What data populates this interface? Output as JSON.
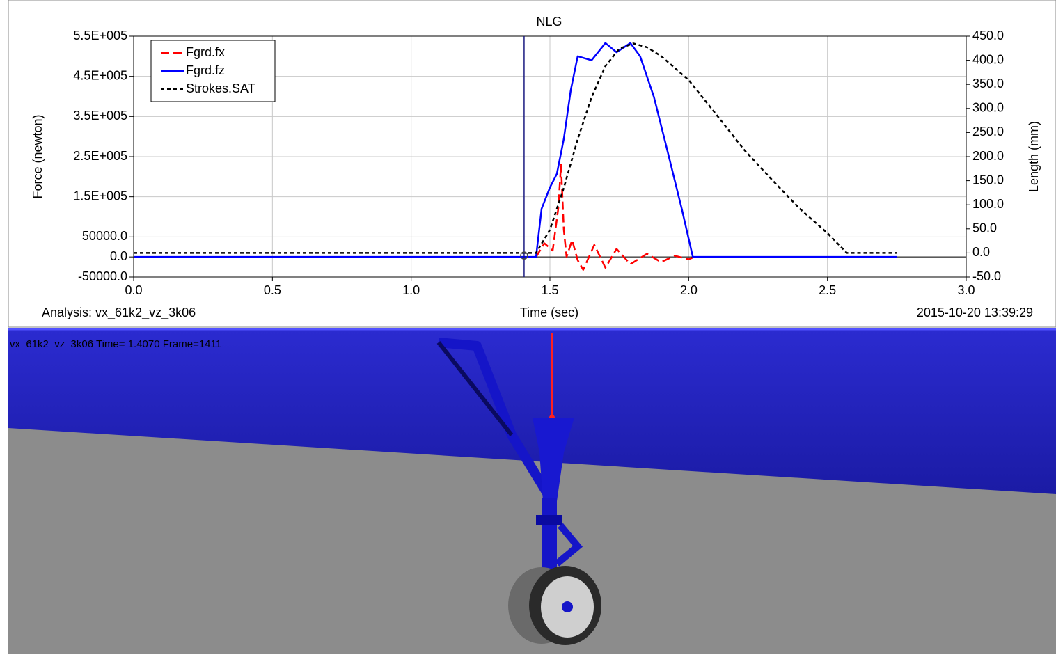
{
  "chart_data": {
    "type": "line",
    "title": "NLG",
    "xlabel": "Time (sec)",
    "ylabel": "Force (newton)",
    "y2label": "Length (mm)",
    "analysis": "Analysis:  vx_61k2_vz_3k06",
    "timestamp": "2015-10-20 13:39:29",
    "xlim": [
      0,
      3
    ],
    "xticks": [
      {
        "value": 0,
        "label": "0.0"
      },
      {
        "value": 0.5,
        "label": "0.5"
      },
      {
        "value": 1,
        "label": "1.0"
      },
      {
        "value": 1.5,
        "label": "1.5"
      },
      {
        "value": 2,
        "label": "2.0"
      },
      {
        "value": 2.5,
        "label": "2.5"
      },
      {
        "value": 3,
        "label": "3.0"
      }
    ],
    "ylim": [
      -50000,
      550000
    ],
    "yticks": [
      {
        "value": 550000,
        "label": "5.5E+005"
      },
      {
        "value": 450000,
        "label": "4.5E+005"
      },
      {
        "value": 350000,
        "label": "3.5E+005"
      },
      {
        "value": 250000,
        "label": "2.5E+005"
      },
      {
        "value": 150000,
        "label": "1.5E+005"
      },
      {
        "value": 50000,
        "label": "50000.0"
      },
      {
        "value": 0,
        "label": "0.0"
      },
      {
        "value": -50000,
        "label": "-50000.0"
      }
    ],
    "y2lim": [
      -50,
      450
    ],
    "y2ticks": [
      {
        "value": 450,
        "label": "450.0"
      },
      {
        "value": 400,
        "label": "400.0"
      },
      {
        "value": 350,
        "label": "350.0"
      },
      {
        "value": 300,
        "label": "300.0"
      },
      {
        "value": 250,
        "label": "250.0"
      },
      {
        "value": 200,
        "label": "200.0"
      },
      {
        "value": 150,
        "label": "150.0"
      },
      {
        "value": 100,
        "label": "100.0"
      },
      {
        "value": 50,
        "label": "50.0"
      },
      {
        "value": 0,
        "label": "0.0"
      },
      {
        "value": -50,
        "label": "-50.0"
      }
    ],
    "grid": true,
    "legend": "upper-left",
    "cursor_x": 1.407,
    "series": [
      {
        "name": "Fgrd.fx",
        "color": "#ff0000",
        "dash": "dashed",
        "x": [
          1.45,
          1.48,
          1.51,
          1.53,
          1.54,
          1.55,
          1.56,
          1.58,
          1.6,
          1.62,
          1.66,
          1.7,
          1.74,
          1.79,
          1.85,
          1.9,
          1.95,
          2.0,
          2.02
        ],
        "values": [
          0,
          34000,
          16000,
          120000,
          230000,
          68000,
          0,
          42000,
          -8000,
          -32000,
          30000,
          -27000,
          20000,
          -18000,
          8000,
          -13000,
          3000,
          -6000,
          0
        ]
      },
      {
        "name": "Fgrd.fz",
        "color": "#0000ff",
        "dash": "solid",
        "x": [
          0,
          1.45,
          1.47,
          1.5,
          1.525,
          1.55,
          1.575,
          1.6,
          1.65,
          1.7,
          1.74,
          1.79,
          1.825,
          1.875,
          1.925,
          1.975,
          2.015,
          2.75
        ],
        "values": [
          0,
          0,
          120000,
          173000,
          207000,
          294000,
          415000,
          500000,
          490000,
          533000,
          510000,
          533000,
          500000,
          398000,
          260000,
          120000,
          0,
          0
        ]
      },
      {
        "name": "Strokes.SAT",
        "color": "#000000",
        "dash": "dotted",
        "axis": "y2",
        "x": [
          0,
          1.45,
          1.5,
          1.55,
          1.6,
          1.65,
          1.7,
          1.75,
          1.8,
          1.85,
          1.9,
          2.0,
          2.1,
          2.2,
          2.3,
          2.4,
          2.5,
          2.57,
          2.75
        ],
        "values": [
          0,
          0,
          48,
          135,
          236,
          323,
          388,
          424,
          435,
          427,
          409,
          359,
          287,
          214,
          152,
          92,
          41,
          0,
          0
        ]
      }
    ]
  },
  "view": {
    "label": "vx_61k2_vz_3k06   Time=  1.4070  Frame=1411"
  }
}
